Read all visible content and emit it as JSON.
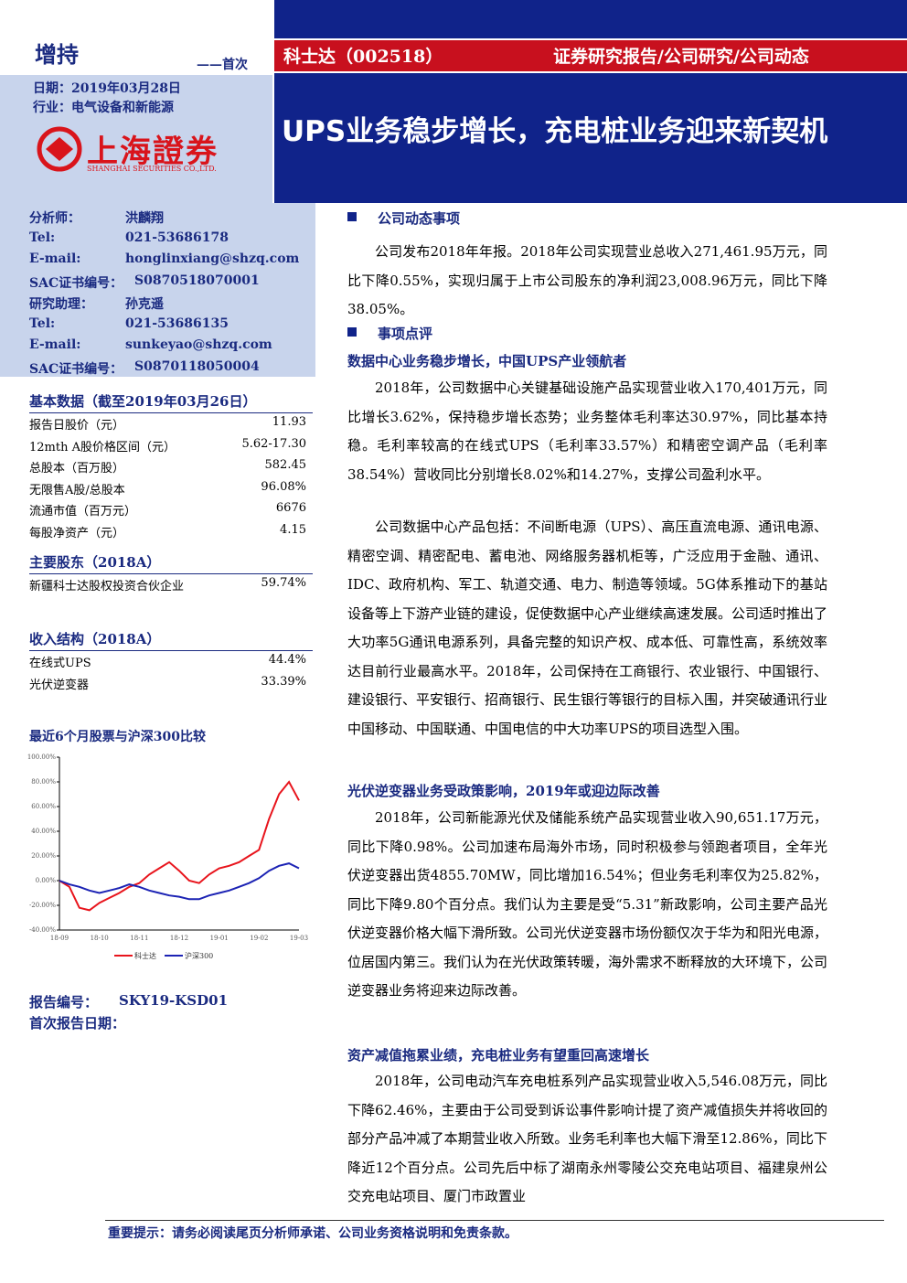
{
  "header": {
    "rating": "增持",
    "first": "——首次",
    "date": "日期：2019年03月28日",
    "industry": "行业：电气设备和新能源",
    "logo_cn": "上海證券",
    "logo_en": "SHANGHAI SECURITIES CO.,LTD.",
    "company": "科士达（002518）",
    "category": "证券研究报告/公司研究/公司动态",
    "title": "UPS业务稳步增长，充电桩业务迎来新契机"
  },
  "analysts": [
    [
      "分析师：",
      "洪麟翔"
    ],
    [
      "Tel:",
      "021-53686178"
    ],
    [
      "E-mail:",
      "honglinxiang@shzq.com"
    ],
    [
      "SAC证书编号：",
      "S0870518070001"
    ],
    [
      "研究助理：",
      "孙克遥"
    ],
    [
      "Tel:",
      "021-53686135"
    ],
    [
      "E-mail:",
      "sunkeyao@shzq.com"
    ],
    [
      "SAC证书编号：",
      "S0870118050004"
    ]
  ],
  "basic_data": {
    "title": "基本数据（截至2019年03月26日）",
    "rows": [
      [
        "报告日股价（元）",
        "11.93"
      ],
      [
        "12mth A股价格区间（元）",
        "5.62-17.30"
      ],
      [
        "总股本（百万股）",
        "582.45"
      ],
      [
        "无限售A股/总股本",
        "96.08%"
      ],
      [
        "流通市值（百万元）",
        "6676"
      ],
      [
        "每股净资产（元）",
        "4.15"
      ]
    ]
  },
  "shareholders": {
    "title": "主要股东（2018A）",
    "rows": [
      [
        "新疆科士达股权投资合伙企业",
        "59.74%"
      ]
    ]
  },
  "revenue": {
    "title": "收入结构（2018A）",
    "rows": [
      [
        "在线式UPS",
        "44.4%"
      ],
      [
        "光伏逆变器",
        "33.39%"
      ]
    ]
  },
  "chart_data": {
    "type": "line",
    "title": "最近6个月股票与沪深300比较",
    "categories": [
      "18-09",
      null,
      null,
      null,
      "18-10",
      null,
      null,
      null,
      "18-11",
      null,
      null,
      null,
      "18-12",
      null,
      null,
      null,
      "19-01",
      null,
      null,
      null,
      "19-02",
      null,
      null,
      null,
      "19-03"
    ],
    "series": [
      {
        "name": "科士达",
        "color": "#e8141c",
        "values": [
          0,
          -5,
          -22,
          -24,
          -18,
          -14,
          -10,
          -5,
          -2,
          5,
          10,
          15,
          8,
          0,
          -2,
          5,
          10,
          12,
          15,
          20,
          25,
          50,
          70,
          80,
          65
        ]
      },
      {
        "name": "沪深300",
        "color": "#1c23b4",
        "values": [
          0,
          -3,
          -5,
          -8,
          -10,
          -8,
          -6,
          -3,
          -5,
          -8,
          -10,
          -12,
          -13,
          -15,
          -15,
          -12,
          -10,
          -8,
          -5,
          -2,
          2,
          8,
          12,
          14,
          10
        ]
      }
    ],
    "ylim": [
      -40,
      100
    ],
    "yticks": [
      {
        "value": -40,
        "label": "-40.00%"
      },
      {
        "value": -20,
        "label": "-20.00%"
      },
      {
        "value": 0,
        "label": "0.00%"
      },
      {
        "value": 20,
        "label": "20.00%"
      },
      {
        "value": 40,
        "label": "40.00%"
      },
      {
        "value": 60,
        "label": "60.00%"
      },
      {
        "value": 80,
        "label": "80.00%"
      },
      {
        "value": 100,
        "label": "100.00%"
      }
    ]
  },
  "report": {
    "number_label": "报告编号：",
    "number": "SKY19-KSD01",
    "first_date_label": "首次报告日期："
  },
  "body": {
    "h1": "公司动态事项",
    "p1": "公司发布2018年年报。2018年公司实现营业总收入271,461.95万元，同比下降0.55%，实现归属于上市公司股东的净利润23,008.96万元，同比下降38.05%。",
    "h2": "事项点评",
    "s1": "数据中心业务稳步增长，中国UPS产业领航者",
    "p2": "2018年，公司数据中心关键基础设施产品实现营业收入170,401万元，同比增长3.62%，保持稳步增长态势；业务整体毛利率达30.97%，同比基本持稳。毛利率较高的在线式UPS（毛利率33.57%）和精密空调产品（毛利率38.54%）营收同比分别增长8.02%和14.27%，支撑公司盈利水平。",
    "p3": "公司数据中心产品包括：不间断电源（UPS）、高压直流电源、通讯电源、精密空调、精密配电、蓄电池、网络服务器机柜等，广泛应用于金融、通讯、IDC、政府机构、军工、轨道交通、电力、制造等领域。5G体系推动下的基站设备等上下游产业链的建设，促使数据中心产业继续高速发展。公司适时推出了大功率5G通讯电源系列，具备完整的知识产权、成本低、可靠性高，系统效率达目前行业最高水平。2018年，公司保持在工商银行、农业银行、中国银行、建设银行、平安银行、招商银行、民生银行等银行的目标入围，并突破通讯行业中国移动、中国联通、中国电信的中大功率UPS的项目选型入围。",
    "s2": "光伏逆变器业务受政策影响，2019年或迎边际改善",
    "p4": "2018年，公司新能源光伏及储能系统产品实现营业收入90,651.17万元，同比下降0.98%。公司加速布局海外市场，同时积极参与领跑者项目，全年光伏逆变器出货4855.70MW，同比增加16.54%；但业务毛利率仅为25.82%，同比下降9.80个百分点。我们认为主要是受“5.31”新政影响，公司主要产品光伏逆变器价格大幅下滑所致。公司光伏逆变器市场份额仅次于华为和阳光电源，位居国内第三。我们认为在光伏政策转暖，海外需求不断释放的大环境下，公司逆变器业务将迎来边际改善。",
    "s3": "资产减值拖累业绩，充电桩业务有望重回高速增长",
    "p5": "2018年，公司电动汽车充电桩系列产品实现营业收入5,546.08万元，同比下降62.46%，主要由于公司受到诉讼事件影响计提了资产减值损失并将收回的部分产品冲减了本期营业收入所致。业务毛利率也大幅下滑至12.86%，同比下降近12个百分点。公司先后中标了湖南永州零陵公交充电站项目、福建泉州公交充电站项目、厦门市政置业"
  },
  "footer": "重要提示：请务必阅读尾页分析师承诺、公司业务资格说明和免责条款。"
}
